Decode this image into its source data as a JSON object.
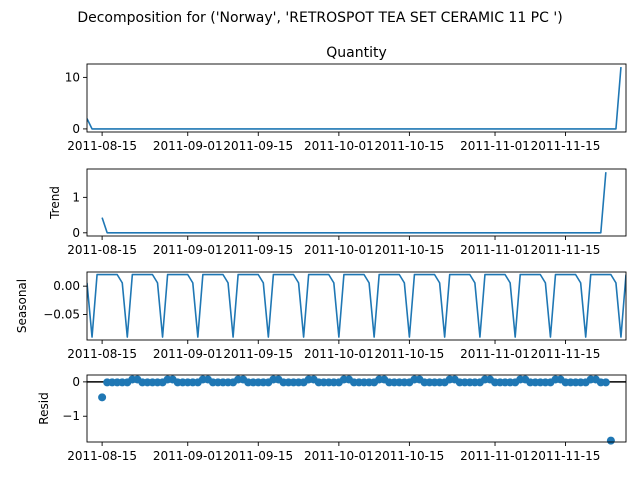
{
  "chart_data": {
    "type": "line",
    "title": "Decomposition for ('Norway', 'RETROSPOT TEA SET CERAMIC 11 PC ')",
    "x_start": "2011-08-12",
    "x_end": "2011-11-27",
    "x_tick_labels": [
      "2011-08-15",
      "2011-09-01",
      "2011-09-15",
      "2011-10-01",
      "2011-10-15",
      "2011-11-01",
      "2011-11-15"
    ],
    "x_tick_days": [
      3,
      20,
      34,
      50,
      64,
      81,
      95
    ],
    "colors": {
      "series": "#1f77b4",
      "axis": "#000000"
    },
    "panels": [
      {
        "name": "observed",
        "subtitle": "Quantity",
        "ylabel": "",
        "kind": "line",
        "ylim": [
          -0.6,
          12.6
        ],
        "yticks": [
          0,
          10
        ],
        "ytick_labels": [
          "0",
          "10"
        ],
        "day_offset": 0,
        "values": [
          2,
          0,
          0,
          0,
          0,
          0,
          0,
          0,
          0,
          0,
          0,
          0,
          0,
          0,
          0,
          0,
          0,
          0,
          0,
          0,
          0,
          0,
          0,
          0,
          0,
          0,
          0,
          0,
          0,
          0,
          0,
          0,
          0,
          0,
          0,
          0,
          0,
          0,
          0,
          0,
          0,
          0,
          0,
          0,
          0,
          0,
          0,
          0,
          0,
          0,
          0,
          0,
          0,
          0,
          0,
          0,
          0,
          0,
          0,
          0,
          0,
          0,
          0,
          0,
          0,
          0,
          0,
          0,
          0,
          0,
          0,
          0,
          0,
          0,
          0,
          0,
          0,
          0,
          0,
          0,
          0,
          0,
          0,
          0,
          0,
          0,
          0,
          0,
          0,
          0,
          0,
          0,
          0,
          0,
          0,
          0,
          0,
          0,
          0,
          0,
          0,
          0,
          0,
          0,
          0,
          0,
          12
        ]
      },
      {
        "name": "trend",
        "subtitle": "",
        "ylabel": "Trend",
        "kind": "line",
        "ylim": [
          -0.09,
          1.8
        ],
        "yticks": [
          0,
          1
        ],
        "ytick_labels": [
          "0",
          "1"
        ],
        "day_offset": 3,
        "values": [
          0.43,
          0,
          0,
          0,
          0,
          0,
          0,
          0,
          0,
          0,
          0,
          0,
          0,
          0,
          0,
          0,
          0,
          0,
          0,
          0,
          0,
          0,
          0,
          0,
          0,
          0,
          0,
          0,
          0,
          0,
          0,
          0,
          0,
          0,
          0,
          0,
          0,
          0,
          0,
          0,
          0,
          0,
          0,
          0,
          0,
          0,
          0,
          0,
          0,
          0,
          0,
          0,
          0,
          0,
          0,
          0,
          0,
          0,
          0,
          0,
          0,
          0,
          0,
          0,
          0,
          0,
          0,
          0,
          0,
          0,
          0,
          0,
          0,
          0,
          0,
          0,
          0,
          0,
          0,
          0,
          0,
          0,
          0,
          0,
          0,
          0,
          0,
          0,
          0,
          0,
          0,
          0,
          0,
          0,
          0,
          0,
          0,
          0,
          0,
          0,
          1.71
        ]
      },
      {
        "name": "seasonal",
        "subtitle": "",
        "ylabel": "Seasonal",
        "kind": "line",
        "ylim": [
          -0.095,
          0.025
        ],
        "yticks": [
          0,
          -0.05
        ],
        "ytick_labels": [
          "0.00",
          "−0.05"
        ],
        "day_offset": 0,
        "pattern": [
          0.0204,
          0.0204,
          0.0204,
          0.0204,
          0.0058,
          -0.0898,
          0.0204
        ],
        "pattern_phase": 3
      },
      {
        "name": "resid",
        "subtitle": "",
        "ylabel": "Resid",
        "kind": "scatter",
        "ylim": [
          -1.75,
          0.2
        ],
        "yticks": [
          0,
          -1
        ],
        "ytick_labels": [
          "0",
          "−1"
        ],
        "day_offset": 3,
        "zero_line": true,
        "first": -0.45,
        "last": -1.71,
        "bump_value": 0.07,
        "base_value": -0.015
      }
    ]
  }
}
